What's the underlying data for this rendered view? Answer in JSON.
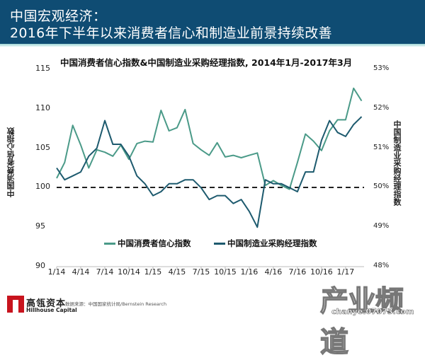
{
  "header": {
    "title_line1": "中国宏观经济：",
    "title_line2": "2016年下半年以来消费者信心和制造业前景持续改善",
    "background_color": "#0f4c73"
  },
  "chart": {
    "title": "中国消费者信心指数&中国制造业采购经理指数, 2014年1月-2017年3月",
    "left_axis_label": "中国消费者信心指数",
    "right_axis_label": "中国制造业采购经理指数",
    "left_ticks": [
      "115",
      "110",
      "105",
      "100",
      "95",
      "90"
    ],
    "right_ticks": [
      "53%",
      "52%",
      "51%",
      "50%",
      "49%",
      "48%"
    ],
    "x_ticks": [
      "1/14",
      "4/14",
      "7/14",
      "10/14",
      "1/15",
      "4/15",
      "7/15",
      "10/15",
      "1/16",
      "4/16",
      "7/16",
      "10/16",
      "1/17"
    ],
    "legend": {
      "cci": "中国消费者信心指数",
      "pmi": "中国制造业采购经理指数"
    },
    "colors": {
      "cci": "#4a9a88",
      "pmi": "#1d5a6e",
      "reference_line": "#222222"
    }
  },
  "footer": {
    "logo_cn": "高瓴资本",
    "logo_en": "Hillhouse Capital",
    "source": "数据来源：中国国家统计局/Bernstein Research",
    "watermark_cn": "产业频道",
    "watermark_en": "chanye.07073.com"
  },
  "chart_data": {
    "type": "line",
    "title": "中国消费者信心指数&中国制造业采购经理指数, 2014年1月-2017年3月",
    "xlabel": "",
    "ylabel": "中国消费者信心指数",
    "ylabel_right": "中国制造业采购经理指数",
    "ylim": [
      90,
      115
    ],
    "ylim_right": [
      48,
      53
    ],
    "grid": false,
    "legend_position": "bottom-inside",
    "reference_line": {
      "axis": "left",
      "value": 100,
      "style": "dashed"
    },
    "x": [
      "1/14",
      "2/14",
      "3/14",
      "4/14",
      "5/14",
      "6/14",
      "7/14",
      "8/14",
      "9/14",
      "10/14",
      "11/14",
      "12/14",
      "1/15",
      "2/15",
      "3/15",
      "4/15",
      "5/15",
      "6/15",
      "7/15",
      "8/15",
      "9/15",
      "10/15",
      "11/15",
      "12/15",
      "1/16",
      "2/16",
      "3/16",
      "4/16",
      "5/16",
      "6/16",
      "7/16",
      "8/16",
      "9/16",
      "10/16",
      "11/16",
      "12/16",
      "1/17",
      "2/17",
      "3/17"
    ],
    "series": [
      {
        "name": "中国消费者信心指数",
        "axis": "left",
        "values": [
          101.2,
          103.2,
          107.9,
          105.4,
          102.5,
          104.8,
          104.5,
          104.0,
          105.4,
          103.6,
          105.6,
          105.9,
          105.8,
          109.8,
          107.2,
          107.6,
          109.9,
          105.6,
          104.8,
          104.1,
          105.7,
          103.9,
          104.1,
          103.8,
          104.1,
          104.4,
          100.3,
          100.9,
          100.3,
          99.8,
          103.2,
          106.8,
          105.9,
          104.7,
          107.2,
          108.6,
          108.6,
          112.6,
          111.0
        ]
      },
      {
        "name": "中国制造业采购经理指数",
        "axis": "right",
        "values": [
          50.5,
          50.2,
          50.3,
          50.4,
          50.8,
          51.0,
          51.7,
          51.1,
          51.1,
          50.8,
          50.3,
          50.1,
          49.8,
          49.9,
          50.1,
          50.1,
          50.2,
          50.2,
          50.0,
          49.7,
          49.8,
          49.8,
          49.6,
          49.7,
          49.4,
          49.0,
          50.2,
          50.1,
          50.1,
          50.0,
          49.9,
          50.4,
          50.4,
          51.2,
          51.7,
          51.4,
          51.3,
          51.6,
          51.8
        ]
      }
    ]
  }
}
